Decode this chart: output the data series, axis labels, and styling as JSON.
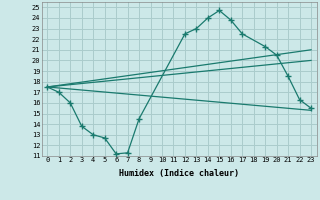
{
  "xlabel": "Humidex (Indice chaleur)",
  "bg_color": "#cce8e8",
  "line_color": "#1a7a6e",
  "grid_color": "#aacccc",
  "xlim": [
    -0.5,
    23.5
  ],
  "ylim": [
    11,
    25.5
  ],
  "xticks": [
    0,
    1,
    2,
    3,
    4,
    5,
    6,
    7,
    8,
    9,
    10,
    11,
    12,
    13,
    14,
    15,
    16,
    17,
    18,
    19,
    20,
    21,
    22,
    23
  ],
  "yticks": [
    11,
    12,
    13,
    14,
    15,
    16,
    17,
    18,
    19,
    20,
    21,
    22,
    23,
    24,
    25
  ],
  "line1_x": [
    0,
    1,
    2,
    3,
    4,
    5,
    6,
    7,
    8,
    12,
    13,
    14,
    15,
    16,
    17,
    19,
    20,
    21,
    22,
    23
  ],
  "line1_y": [
    17.5,
    17.0,
    16.0,
    13.8,
    13.0,
    12.7,
    11.2,
    11.3,
    14.5,
    22.5,
    23.0,
    24.0,
    24.7,
    23.8,
    22.5,
    21.3,
    20.5,
    18.5,
    16.3,
    15.5
  ],
  "line2_x": [
    0,
    23
  ],
  "line2_y": [
    17.5,
    21.0
  ],
  "line3_x": [
    0,
    23
  ],
  "line3_y": [
    17.5,
    15.3
  ],
  "line4_x": [
    0,
    23
  ],
  "line4_y": [
    17.5,
    20.0
  ]
}
